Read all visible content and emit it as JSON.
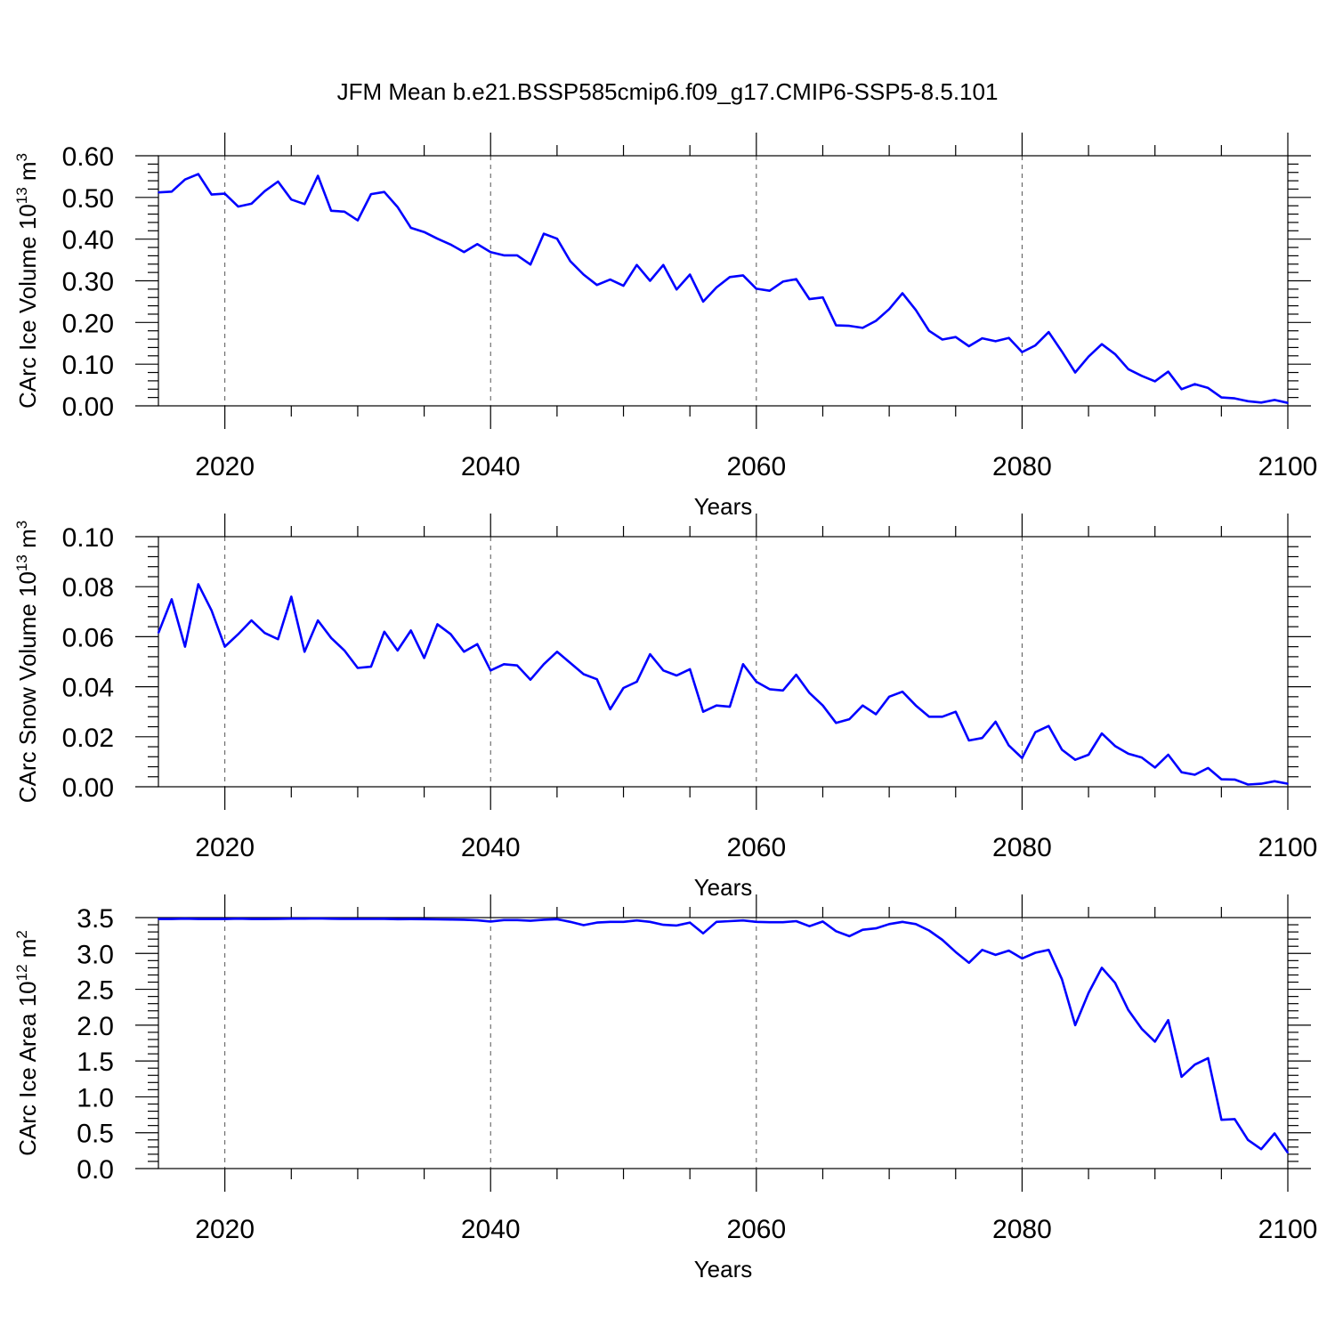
{
  "title": "JFM Mean b.e21.BSSP585cmip6.f09_g17.CMIP6-SSP5-8.5.101",
  "colors": {
    "series": "#0000ff",
    "axis": "#000000",
    "grid": "#555555"
  },
  "chart_data": [
    {
      "type": "line",
      "ylabel": "CArc Ice Volume",
      "ylabel_unit_base": "10",
      "ylabel_unit_exp": "13",
      "ylabel_unit_tail": "m",
      "ylabel_unit_tail_exp": "3",
      "xlabel": "Years",
      "xlim": [
        2015,
        2100
      ],
      "ylim": [
        0,
        0.6
      ],
      "grid": "vertical dashed at major x ticks",
      "xticks": [
        2020,
        2040,
        2060,
        2080,
        2100
      ],
      "xtick_labels": [
        "2020",
        "2040",
        "2060",
        "2080",
        "2100"
      ],
      "yticks": [
        0,
        0.1,
        0.2,
        0.3,
        0.4,
        0.5,
        0.6
      ],
      "ytick_labels": [
        "0.00",
        "0.10",
        "0.20",
        "0.30",
        "0.40",
        "0.50",
        "0.60"
      ],
      "x_start": 2015,
      "values": [
        0.512,
        0.514,
        0.543,
        0.556,
        0.507,
        0.509,
        0.478,
        0.485,
        0.515,
        0.538,
        0.495,
        0.484,
        0.552,
        0.468,
        0.466,
        0.445,
        0.508,
        0.513,
        0.477,
        0.427,
        0.417,
        0.401,
        0.387,
        0.369,
        0.388,
        0.369,
        0.361,
        0.361,
        0.339,
        0.413,
        0.401,
        0.347,
        0.315,
        0.29,
        0.303,
        0.288,
        0.338,
        0.3,
        0.338,
        0.279,
        0.315,
        0.25,
        0.284,
        0.309,
        0.313,
        0.281,
        0.276,
        0.298,
        0.304,
        0.256,
        0.26,
        0.193,
        0.192,
        0.187,
        0.204,
        0.232,
        0.27,
        0.23,
        0.18,
        0.159,
        0.165,
        0.143,
        0.162,
        0.155,
        0.163,
        0.129,
        0.145,
        0.177,
        0.13,
        0.08,
        0.118,
        0.148,
        0.124,
        0.088,
        0.072,
        0.059,
        0.082,
        0.04,
        0.052,
        0.043,
        0.02,
        0.018,
        0.011,
        0.008,
        0.014,
        0.007
      ]
    },
    {
      "type": "line",
      "ylabel": "CArc Snow Volume",
      "ylabel_unit_base": "10",
      "ylabel_unit_exp": "13",
      "ylabel_unit_tail": "m",
      "ylabel_unit_tail_exp": "3",
      "xlabel": "Years",
      "xlim": [
        2015,
        2100
      ],
      "ylim": [
        0,
        0.1
      ],
      "grid": "vertical dashed at major x ticks",
      "xticks": [
        2020,
        2040,
        2060,
        2080,
        2100
      ],
      "xtick_labels": [
        "2020",
        "2040",
        "2060",
        "2080",
        "2100"
      ],
      "yticks": [
        0,
        0.02,
        0.04,
        0.06,
        0.08,
        0.1
      ],
      "ytick_labels": [
        "0.00",
        "0.02",
        "0.04",
        "0.06",
        "0.08",
        "0.10"
      ],
      "x_start": 2015,
      "values": [
        0.0615,
        0.075,
        0.056,
        0.081,
        0.0705,
        0.056,
        0.061,
        0.0665,
        0.0615,
        0.059,
        0.076,
        0.054,
        0.0665,
        0.0595,
        0.0545,
        0.0475,
        0.048,
        0.062,
        0.0545,
        0.0625,
        0.0515,
        0.065,
        0.061,
        0.054,
        0.057,
        0.0465,
        0.049,
        0.0485,
        0.0428,
        0.049,
        0.054,
        0.0495,
        0.045,
        0.043,
        0.031,
        0.0395,
        0.042,
        0.053,
        0.0465,
        0.0445,
        0.047,
        0.03,
        0.0325,
        0.032,
        0.049,
        0.042,
        0.039,
        0.0385,
        0.0448,
        0.0375,
        0.0325,
        0.0255,
        0.027,
        0.0325,
        0.029,
        0.036,
        0.038,
        0.0325,
        0.028,
        0.028,
        0.03,
        0.0185,
        0.0195,
        0.026,
        0.0165,
        0.0115,
        0.0218,
        0.0243,
        0.0148,
        0.0108,
        0.0128,
        0.0213,
        0.0163,
        0.0132,
        0.0117,
        0.0077,
        0.0128,
        0.0058,
        0.0048,
        0.0075,
        0.003,
        0.0029,
        0.0009,
        0.0012,
        0.0022,
        0.0012
      ]
    },
    {
      "type": "line",
      "ylabel": "CArc Ice Area",
      "ylabel_unit_base": "10",
      "ylabel_unit_exp": "12",
      "ylabel_unit_tail": "m",
      "ylabel_unit_tail_exp": "2",
      "xlabel": "Years",
      "xlim": [
        2015,
        2100
      ],
      "ylim": [
        0,
        3.5
      ],
      "grid": "vertical dashed at major x ticks",
      "xticks": [
        2020,
        2040,
        2060,
        2080,
        2100
      ],
      "xtick_labels": [
        "2020",
        "2040",
        "2060",
        "2080",
        "2100"
      ],
      "yticks": [
        0,
        0.5,
        1,
        1.5,
        2,
        2.5,
        3,
        3.5
      ],
      "ytick_labels": [
        "0.0",
        "0.5",
        "1.0",
        "1.5",
        "2.0",
        "2.5",
        "3.0",
        "3.5"
      ],
      "x_start": 2015,
      "values": [
        3.48,
        3.48,
        3.485,
        3.48,
        3.48,
        3.48,
        3.485,
        3.48,
        3.48,
        3.482,
        3.485,
        3.485,
        3.487,
        3.484,
        3.482,
        3.482,
        3.482,
        3.483,
        3.478,
        3.479,
        3.478,
        3.475,
        3.473,
        3.47,
        3.462,
        3.445,
        3.465,
        3.465,
        3.455,
        3.47,
        3.478,
        3.44,
        3.395,
        3.43,
        3.44,
        3.44,
        3.46,
        3.44,
        3.4,
        3.39,
        3.43,
        3.28,
        3.44,
        3.45,
        3.46,
        3.44,
        3.435,
        3.435,
        3.45,
        3.38,
        3.445,
        3.31,
        3.24,
        3.33,
        3.35,
        3.41,
        3.44,
        3.41,
        3.32,
        3.19,
        3.02,
        2.87,
        3.05,
        2.98,
        3.04,
        2.93,
        3.01,
        3.05,
        2.64,
        2.0,
        2.45,
        2.8,
        2.59,
        2.21,
        1.95,
        1.77,
        2.07,
        1.28,
        1.45,
        1.54,
        0.68,
        0.69,
        0.4,
        0.27,
        0.49,
        0.22
      ]
    }
  ]
}
